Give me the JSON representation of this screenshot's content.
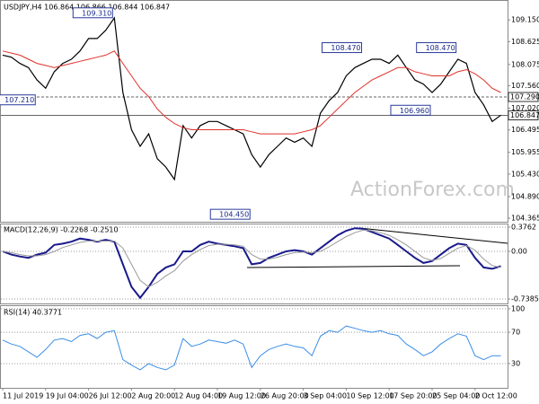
{
  "title": "USDJPY,H4 106.864 106.866 106.844 106.847",
  "watermark": "ActionForex.com",
  "chart_data": [
    {
      "type": "line",
      "categories": [
        "11 Jul 2019",
        null,
        null,
        null,
        null,
        "19 Jul 04:00",
        null,
        null,
        null,
        null,
        "26 Jul 12:00",
        null,
        null,
        null,
        null,
        "2 Aug 20:00",
        null,
        null,
        null,
        null,
        "12 Aug 04:00",
        null,
        null,
        null,
        null,
        "19 Aug 12:00",
        null,
        null,
        null,
        null,
        "26 Aug 20:00",
        null,
        null,
        null,
        null,
        "3 Sep 04:00",
        null,
        null,
        null,
        null,
        "10 Sep 12:00",
        null,
        null,
        null,
        null,
        "17 Sep 20:00",
        null,
        null,
        null,
        null,
        "25 Sep 04:00",
        null,
        null,
        null,
        null,
        "2 Oct 12:00",
        null,
        null,
        null
      ],
      "series": [
        {
          "color": "#000000",
          "values": [
            108.3,
            108.25,
            108.1,
            108.0,
            107.7,
            107.5,
            107.9,
            108.1,
            108.2,
            108.4,
            108.7,
            108.7,
            108.9,
            109.2,
            107.4,
            106.5,
            106.1,
            106.4,
            105.8,
            105.6,
            105.3,
            106.6,
            106.3,
            106.6,
            106.7,
            106.7,
            106.6,
            106.5,
            106.4,
            105.9,
            105.6,
            105.9,
            106.1,
            106.3,
            106.2,
            106.3,
            106.1,
            106.9,
            107.2,
            107.4,
            107.8,
            108.0,
            108.1,
            108.2,
            108.2,
            108.1,
            108.3,
            108.0,
            107.7,
            107.6,
            107.4,
            107.6,
            107.9,
            108.2,
            108.1,
            107.4,
            107.1,
            106.7,
            106.85
          ]
        },
        {
          "color": "#e0312c",
          "values": [
            108.4,
            108.35,
            108.3,
            108.2,
            108.1,
            108.05,
            108.0,
            108.05,
            108.1,
            108.15,
            108.2,
            108.25,
            108.3,
            108.4,
            108.1,
            107.8,
            107.5,
            107.3,
            107.0,
            106.8,
            106.65,
            106.55,
            106.5,
            106.5,
            106.5,
            106.5,
            106.5,
            106.5,
            106.5,
            106.45,
            106.4,
            106.4,
            106.4,
            106.4,
            106.4,
            106.45,
            106.5,
            106.6,
            106.8,
            107.0,
            107.2,
            107.4,
            107.55,
            107.7,
            107.8,
            107.9,
            108.0,
            108.0,
            107.9,
            107.85,
            107.8,
            107.8,
            107.8,
            107.9,
            107.95,
            107.85,
            107.7,
            107.5,
            107.4
          ]
        }
      ],
      "ylim": [
        104.28,
        109.63
      ],
      "yticks": [
        {
          "value": 109.15,
          "label": "109.150"
        },
        {
          "value": 108.625,
          "label": "108.625"
        },
        {
          "value": 108.075,
          "label": "108.075"
        },
        {
          "value": 107.56,
          "label": "107.560"
        },
        {
          "value": 107.02,
          "label": "107.020"
        },
        {
          "value": 106.495,
          "label": "106.495"
        },
        {
          "value": 105.955,
          "label": "105.955"
        },
        {
          "value": 105.43,
          "label": "105.430"
        },
        {
          "value": 104.89,
          "label": "104.890"
        },
        {
          "value": 104.365,
          "label": "104.365"
        }
      ],
      "grid": false,
      "hlines": [
        {
          "value": 107.29,
          "label": "107.290",
          "style": "dashed"
        },
        {
          "value": 106.847,
          "label": "106.847",
          "style": "solid"
        }
      ],
      "annotations": [
        {
          "x": 13,
          "value": 109.31,
          "label": "109.310"
        },
        {
          "x": 4,
          "value": 107.21,
          "label": "107.210"
        },
        {
          "x": 29,
          "value": 104.45,
          "label": "104.450"
        },
        {
          "x": 42,
          "value": 108.47,
          "label": "108.470"
        },
        {
          "x": 53,
          "value": 108.47,
          "label": "108.470"
        },
        {
          "x": 50,
          "value": 106.96,
          "label": "106.960"
        }
      ]
    },
    {
      "type": "line",
      "title": "MACD(12,26,9) -0.2268 -0.2510",
      "series": [
        {
          "color": "#1a1a8c",
          "values": [
            0.0,
            -0.05,
            -0.08,
            -0.1,
            -0.05,
            -0.02,
            0.1,
            0.12,
            0.15,
            0.2,
            0.18,
            0.15,
            0.18,
            0.15,
            -0.2,
            -0.55,
            -0.72,
            -0.55,
            -0.35,
            -0.25,
            -0.2,
            0.0,
            0.0,
            0.1,
            0.15,
            0.12,
            0.1,
            0.08,
            0.05,
            -0.2,
            -0.18,
            -0.1,
            -0.05,
            0.0,
            0.02,
            0.0,
            -0.05,
            0.05,
            0.15,
            0.25,
            0.32,
            0.36,
            0.35,
            0.3,
            0.25,
            0.2,
            0.1,
            0.0,
            -0.1,
            -0.18,
            -0.15,
            -0.05,
            0.05,
            0.12,
            0.1,
            -0.1,
            -0.25,
            -0.27,
            -0.23
          ]
        },
        {
          "color": "#999999",
          "values": [
            0.0,
            -0.02,
            -0.05,
            -0.07,
            -0.07,
            -0.05,
            0.0,
            0.06,
            0.1,
            0.14,
            0.16,
            0.16,
            0.16,
            0.16,
            0.05,
            -0.2,
            -0.45,
            -0.55,
            -0.48,
            -0.38,
            -0.3,
            -0.15,
            -0.05,
            0.03,
            0.09,
            0.11,
            0.11,
            0.1,
            0.08,
            -0.05,
            -0.12,
            -0.12,
            -0.09,
            -0.05,
            -0.02,
            -0.01,
            -0.02,
            0.0,
            0.07,
            0.15,
            0.23,
            0.29,
            0.33,
            0.32,
            0.29,
            0.25,
            0.18,
            0.1,
            0.0,
            -0.1,
            -0.14,
            -0.11,
            -0.03,
            0.05,
            0.09,
            0.02,
            -0.12,
            -0.22,
            -0.25
          ]
        }
      ],
      "ylim": [
        -0.808,
        0.432
      ],
      "yticks": [
        0.3762,
        {
          "value": 0,
          "label": "0.00"
        },
        -0.7385
      ],
      "grid": true
    },
    {
      "type": "line",
      "title": "RSI(14) 40.3771",
      "series": [
        {
          "color": "#3a8ee6",
          "values": [
            60,
            55,
            52,
            45,
            38,
            48,
            60,
            62,
            58,
            66,
            68,
            62,
            70,
            72,
            35,
            28,
            22,
            30,
            25,
            22,
            28,
            62,
            52,
            55,
            60,
            58,
            56,
            60,
            55,
            25,
            40,
            48,
            52,
            55,
            52,
            50,
            40,
            65,
            72,
            70,
            78,
            75,
            72,
            70,
            72,
            68,
            66,
            55,
            48,
            40,
            45,
            55,
            62,
            68,
            65,
            40,
            35,
            40,
            40
          ]
        }
      ],
      "ylim": [
        -1,
        104.5
      ],
      "yticks": [
        100,
        70,
        30
      ],
      "grid": true
    }
  ]
}
